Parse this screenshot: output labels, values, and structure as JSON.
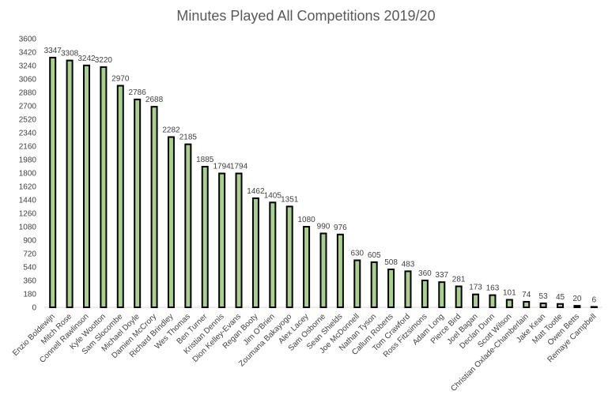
{
  "chart_data": {
    "type": "bar",
    "title": "Minutes Played All Competitions 2019/20",
    "xlabel": "",
    "ylabel": "",
    "ylim": [
      0,
      3600
    ],
    "yticks": [
      0,
      180,
      360,
      540,
      720,
      900,
      1080,
      1260,
      1440,
      1620,
      1800,
      1980,
      2160,
      2340,
      2520,
      2700,
      2880,
      3060,
      3240,
      3420,
      3600
    ],
    "grid": false,
    "legend": "none",
    "bar_fill": "#a9d18e",
    "bar_stroke": "#000000",
    "categories": [
      "Enzio Boldewijn",
      "Mitch Rose",
      "Connell Rawlinson",
      "Kyle Wootton",
      "Sam Slocombe",
      "Michael Doyle",
      "Damien McCrory",
      "Richard Brindley",
      "Wes Thomas",
      "Ben Turner",
      "Kristian Dennis",
      "Dion Kelley-Evans",
      "Regan Booty",
      "Jim O'Brien",
      "Zoumana Bakayogo",
      "Alex Lacey",
      "Sam Osborne",
      "Sean Shields",
      "Joe McDonnell",
      "Nathan Tyson",
      "Callum Roberts",
      "Tom Crawford",
      "Ross Fitzsimons",
      "Adam Long",
      "Pierce Bird",
      "Joel Bagan",
      "Declan Dunn",
      "Scott Wilson",
      "Christian Oxlade-Chamberlain",
      "Jake Kean",
      "Matt Tootle",
      "Owen Betts",
      "Remaye Campbell"
    ],
    "values": [
      3347,
      3308,
      3242,
      3220,
      2970,
      2786,
      2688,
      2282,
      2185,
      1885,
      1794,
      1794,
      1462,
      1405,
      1351,
      1080,
      990,
      976,
      630,
      605,
      508,
      483,
      360,
      337,
      281,
      173,
      163,
      101,
      74,
      53,
      45,
      20,
      6
    ]
  }
}
